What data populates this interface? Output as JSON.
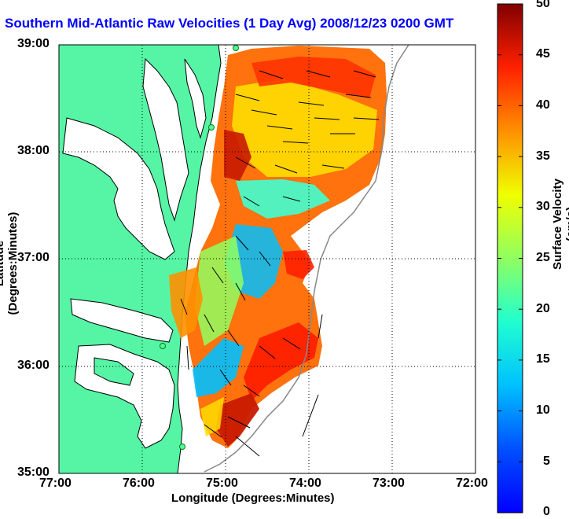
{
  "title": "Southern Mid-Atlantic Raw Velocities (1 Day Avg) 2008/12/23 0200 GMT",
  "xlabel": "Longitude (Degrees:Minutes)",
  "ylabel": "Latitude (Degrees:Minutes)",
  "colorbar_label": "Surface Velocity (cm/s)",
  "x_ticks": [
    "77:00",
    "76:00",
    "75:00",
    "74:00",
    "73:00",
    "72:00"
  ],
  "y_ticks": [
    "39:00",
    "38:00",
    "37:00",
    "36:00",
    "35:00"
  ],
  "colorbar_ticks": [
    "50",
    "45",
    "40",
    "35",
    "30",
    "25",
    "20",
    "15",
    "10",
    "5",
    "0"
  ],
  "colors": {
    "land": "#55f5a5",
    "coast": "#000000",
    "grid": "#000000",
    "title": "#0000ff",
    "colorbar_low": "#0000ff",
    "colorbar_high": "#800000"
  },
  "map": {
    "projection": "lon/lat",
    "lon_range": [
      -77,
      -72
    ],
    "lat_range": [
      35,
      39
    ],
    "grid": true,
    "colorbar_range": [
      0,
      50
    ]
  }
}
